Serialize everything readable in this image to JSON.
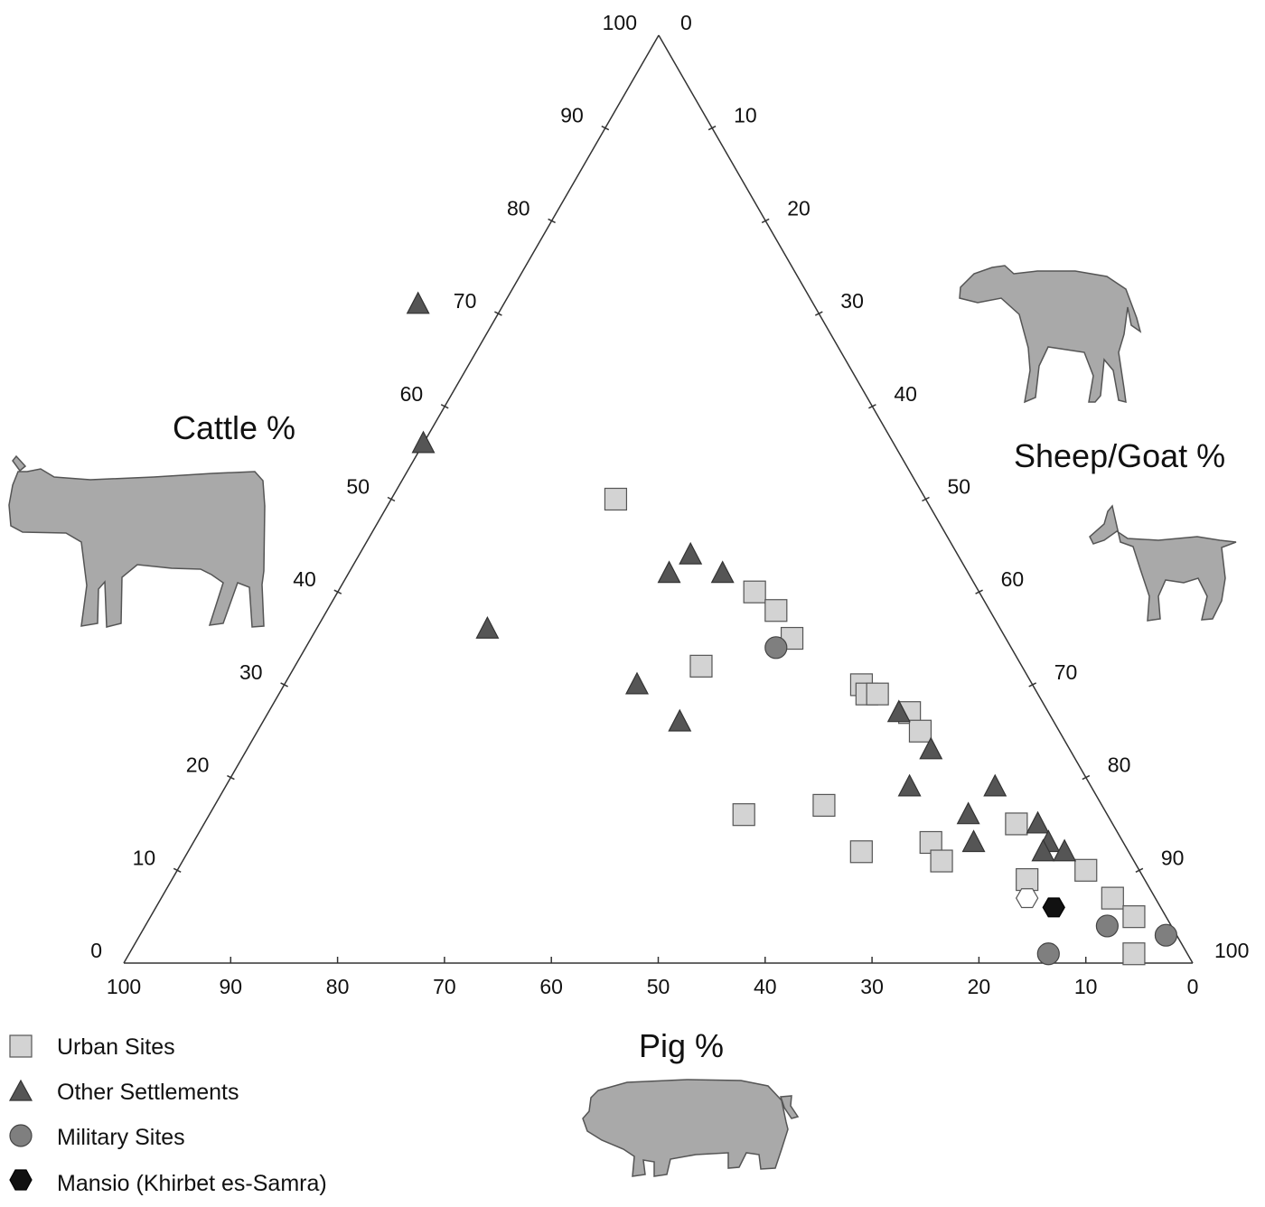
{
  "chart_data": {
    "type": "scatter",
    "subtype": "ternary",
    "axes": {
      "cattle": {
        "label": "Cattle %",
        "ticks": [
          "0",
          "10",
          "20",
          "30",
          "40",
          "50",
          "60",
          "70",
          "80",
          "90",
          "100"
        ],
        "icon": "cattle-icon"
      },
      "sheep_goat": {
        "label": "Sheep/Goat %",
        "ticks": [
          "0",
          "10",
          "20",
          "30",
          "40",
          "50",
          "60",
          "70",
          "80",
          "90",
          "100"
        ],
        "icons": [
          "sheep-icon",
          "goat-icon"
        ]
      },
      "pig": {
        "label": "Pig %",
        "ticks": [
          "100",
          "90",
          "80",
          "70",
          "60",
          "50",
          "40",
          "30",
          "20",
          "10",
          "0"
        ],
        "icon": "pig-icon"
      }
    },
    "legend": {
      "placement": "bottom-left",
      "entries": [
        {
          "key": "urban",
          "label": "Urban Sites",
          "marker": "square",
          "color": "#d3d3d3"
        },
        {
          "key": "other",
          "label": "Other Settlements",
          "marker": "triangle",
          "color": "#555555"
        },
        {
          "key": "military",
          "label": "Military Sites",
          "marker": "circle",
          "color": "#7f7f7f"
        },
        {
          "key": "mansio",
          "label": "Mansio (Khirbet es-Samra)",
          "marker": "hexagon",
          "color": "#111111"
        }
      ]
    },
    "series": [
      {
        "key": "urban",
        "points": [
          {
            "cattle": 50,
            "pig": 29
          },
          {
            "cattle": 40,
            "pig": 21
          },
          {
            "cattle": 38,
            "pig": 20
          },
          {
            "cattle": 35,
            "pig": 20
          },
          {
            "cattle": 32,
            "pig": 30
          },
          {
            "cattle": 30,
            "pig": 16
          },
          {
            "cattle": 29,
            "pig": 16
          },
          {
            "cattle": 29,
            "pig": 15
          },
          {
            "cattle": 27,
            "pig": 13
          },
          {
            "cattle": 25,
            "pig": 13
          },
          {
            "cattle": 16,
            "pig": 34
          },
          {
            "cattle": 17,
            "pig": 26
          },
          {
            "cattle": 12,
            "pig": 25
          },
          {
            "cattle": 13,
            "pig": 18
          },
          {
            "cattle": 11,
            "pig": 18
          },
          {
            "cattle": 15,
            "pig": 9
          },
          {
            "cattle": 10,
            "pig": 5
          },
          {
            "cattle": 9,
            "pig": 11
          },
          {
            "cattle": 7,
            "pig": 4
          },
          {
            "cattle": 5,
            "pig": 3
          },
          {
            "cattle": 1,
            "pig": 5
          }
        ]
      },
      {
        "key": "other",
        "points": [
          {
            "cattle": 71,
            "pig": 37
          },
          {
            "cattle": 56,
            "pig": 44
          },
          {
            "cattle": 36,
            "pig": 48
          },
          {
            "cattle": 42,
            "pig": 28
          },
          {
            "cattle": 44,
            "pig": 25
          },
          {
            "cattle": 42,
            "pig": 23
          },
          {
            "cattle": 30,
            "pig": 37
          },
          {
            "cattle": 26,
            "pig": 35
          },
          {
            "cattle": 27,
            "pig": 14
          },
          {
            "cattle": 23,
            "pig": 13
          },
          {
            "cattle": 19,
            "pig": 17
          },
          {
            "cattle": 19,
            "pig": 9
          },
          {
            "cattle": 16,
            "pig": 13
          },
          {
            "cattle": 13,
            "pig": 14
          },
          {
            "cattle": 15,
            "pig": 7
          },
          {
            "cattle": 13,
            "pig": 7
          },
          {
            "cattle": 12,
            "pig": 8
          },
          {
            "cattle": 12,
            "pig": 6
          }
        ]
      },
      {
        "key": "military",
        "points": [
          {
            "cattle": 34,
            "pig": 22
          },
          {
            "cattle": 4,
            "pig": 6
          },
          {
            "cattle": 3,
            "pig": 1
          },
          {
            "cattle": 1,
            "pig": 13
          }
        ]
      },
      {
        "key": "mansio",
        "points": [
          {
            "cattle": 6,
            "pig": 10
          }
        ]
      },
      {
        "key": "mansio-open",
        "points": [
          {
            "cattle": 7,
            "pig": 12
          }
        ]
      }
    ]
  }
}
